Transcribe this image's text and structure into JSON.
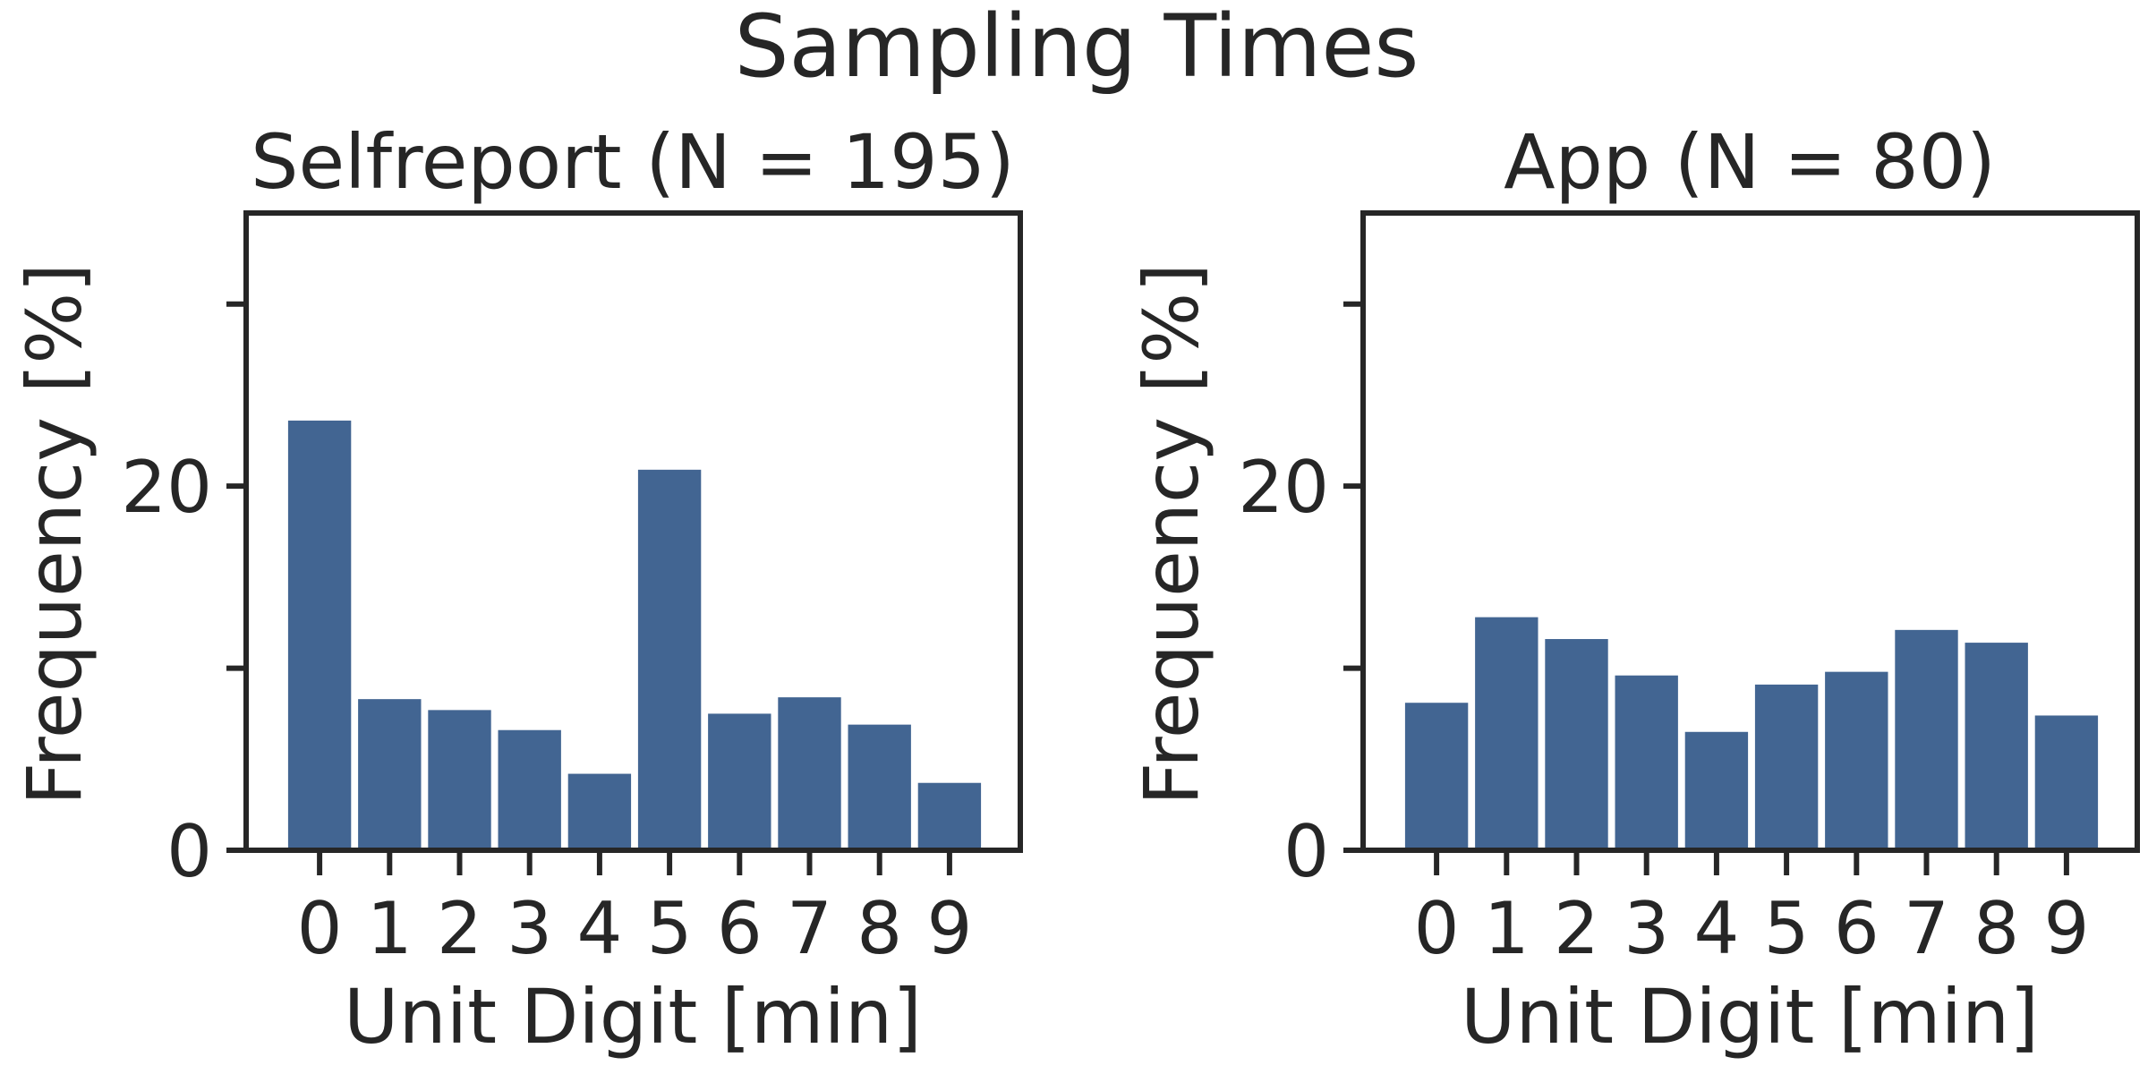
{
  "figure_title": "Sampling Times",
  "colors": {
    "bar": "#426592",
    "axis": "#262626",
    "background": "#ffffff"
  },
  "chart_data": [
    {
      "type": "bar",
      "title": "Selfreport (N = 195)",
      "xlabel": "Unit Digit [min]",
      "ylabel": "Frequency [%]",
      "categories": [
        "0",
        "1",
        "2",
        "3",
        "4",
        "5",
        "6",
        "7",
        "8",
        "9"
      ],
      "values": [
        23.6,
        8.3,
        7.7,
        6.6,
        4.2,
        20.9,
        7.5,
        8.4,
        6.9,
        3.7
      ],
      "ylim": [
        0,
        35
      ],
      "yticks": [
        0,
        10,
        20,
        30
      ],
      "yticklabels": [
        "0",
        "",
        "20",
        ""
      ],
      "grid": false,
      "legend": "none"
    },
    {
      "type": "bar",
      "title": "App (N = 80)",
      "xlabel": "Unit Digit [min]",
      "ylabel": "Frequency [%]",
      "categories": [
        "0",
        "1",
        "2",
        "3",
        "4",
        "5",
        "6",
        "7",
        "8",
        "9"
      ],
      "values": [
        8.1,
        12.8,
        11.6,
        9.6,
        6.5,
        9.1,
        9.8,
        12.1,
        11.4,
        7.4
      ],
      "ylim": [
        0,
        35
      ],
      "yticks": [
        0,
        10,
        20,
        30
      ],
      "yticklabels": [
        "0",
        "",
        "20",
        ""
      ],
      "grid": false,
      "legend": "none"
    }
  ]
}
